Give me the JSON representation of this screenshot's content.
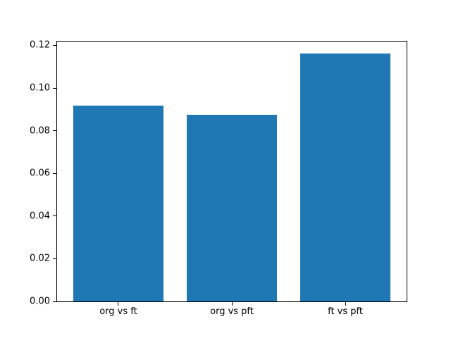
{
  "figure": {
    "background": "#ffffff"
  },
  "chart_data": {
    "type": "bar",
    "categories": [
      "org vs ft",
      "org vs pft",
      "ft vs pft"
    ],
    "values": [
      0.0917,
      0.0876,
      0.1161
    ],
    "title": "",
    "xlabel": "",
    "ylabel": "",
    "ylim": [
      0,
      0.1218
    ],
    "xlim": [
      -0.54,
      2.54
    ],
    "bar_centers": [
      0,
      1,
      2
    ],
    "bar_width": 0.8,
    "yticks": [
      0,
      0.02,
      0.04,
      0.06,
      0.08,
      0.1,
      0.12
    ],
    "ytick_labels": [
      "0.00",
      "0.02",
      "0.04",
      "0.06",
      "0.08",
      "0.10",
      "0.12"
    ],
    "bar_color": "#1f77b4",
    "spine_color": "#000000",
    "tick_label_color": "#000000",
    "grid": false,
    "legend": "none"
  }
}
